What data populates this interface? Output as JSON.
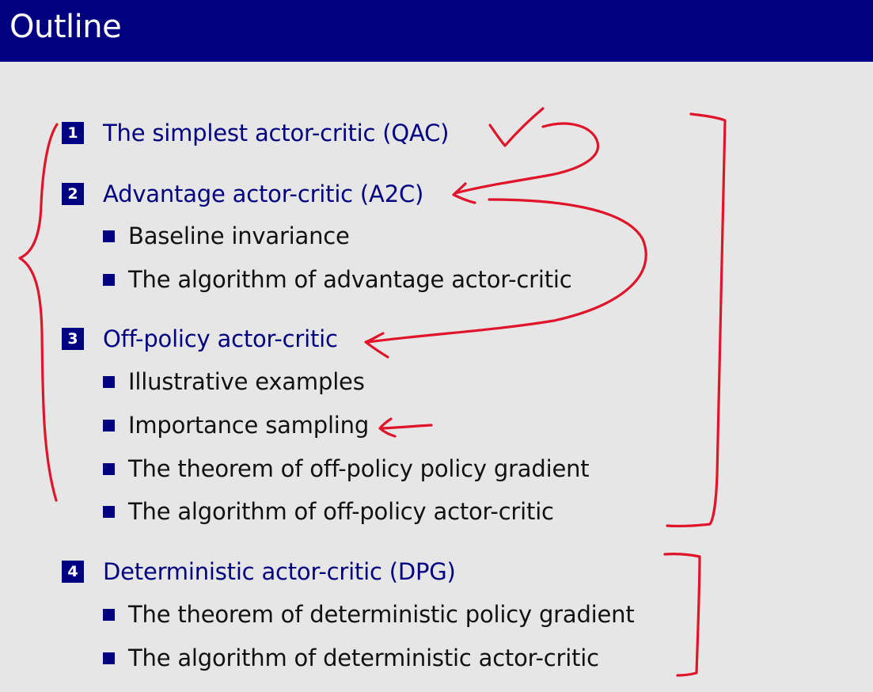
{
  "slide": {
    "title": "Outline"
  },
  "sections": [
    {
      "number": "1",
      "title": "The simplest actor-critic (QAC)",
      "items": []
    },
    {
      "number": "2",
      "title": "Advantage actor-critic (A2C)",
      "items": [
        "Baseline invariance",
        "The algorithm of advantage actor-critic"
      ]
    },
    {
      "number": "3",
      "title": "Off-policy actor-critic",
      "items": [
        "Illustrative examples",
        "Importance sampling",
        "The theorem of off-policy policy gradient",
        "The algorithm of off-policy actor-critic"
      ]
    },
    {
      "number": "4",
      "title": "Deterministic actor-critic (DPG)",
      "items": [
        "The theorem of deterministic policy gradient",
        "The algorithm of deterministic actor-critic"
      ]
    }
  ],
  "colors": {
    "title_bar": "#000080",
    "background": "#e6e6e6",
    "section_text": "#000080",
    "body_text": "#111111",
    "annotation_ink": "#e0142a"
  }
}
